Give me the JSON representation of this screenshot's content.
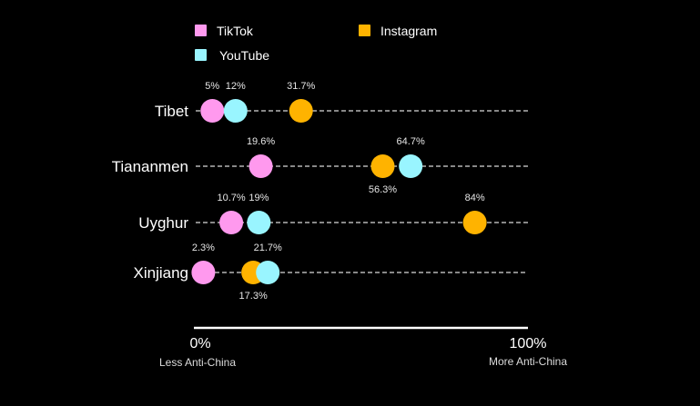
{
  "chart_data": {
    "type": "scatter",
    "title": "",
    "categories": [
      "Tibet",
      "Tiananmen",
      "Uyghur",
      "Xinjiang"
    ],
    "xlim": [
      0,
      100
    ],
    "axis": {
      "min_label": "0%",
      "max_label": "100%",
      "min_caption": "Less Anti-China",
      "max_caption": "More Anti-China"
    },
    "series": [
      {
        "name": "TikTok",
        "color": "#ff99ee",
        "values": [
          5,
          19.6,
          10.7,
          2.3
        ],
        "labels": [
          "5%",
          "19.6%",
          "10.7%",
          "2.3%"
        ],
        "label_pos": [
          "above",
          "above",
          "above",
          "above"
        ]
      },
      {
        "name": "Instagram",
        "color": "#ffb300",
        "values": [
          31.7,
          56.3,
          84,
          17.3
        ],
        "labels": [
          "31.7%",
          "56.3%",
          "84%",
          "17.3%"
        ],
        "label_pos": [
          "above",
          "below",
          "above",
          "below"
        ]
      },
      {
        "name": "YouTube",
        "color": "#99f5ff",
        "values": [
          12,
          64.7,
          19,
          21.7
        ],
        "labels": [
          "12%",
          "64.7%",
          "19%",
          "21.7%"
        ],
        "label_pos": [
          "above",
          "above",
          "above",
          "above"
        ]
      }
    ],
    "legend": [
      "TikTok",
      "Instagram",
      "YouTube"
    ]
  }
}
